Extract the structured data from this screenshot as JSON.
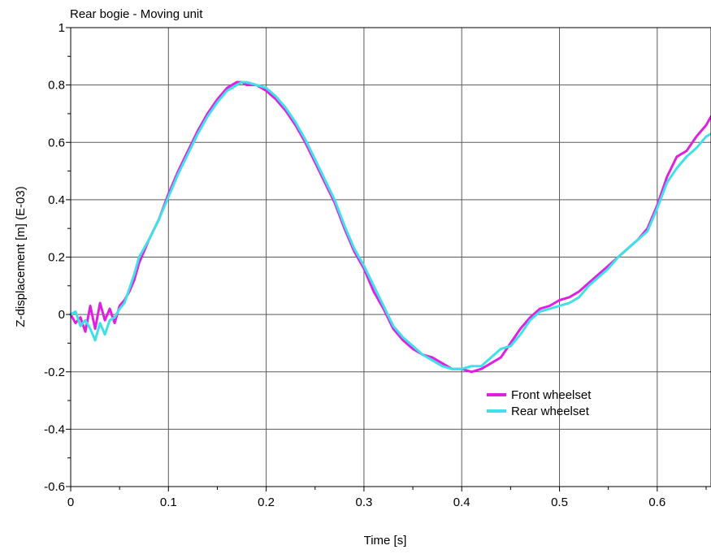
{
  "chart_data": {
    "type": "line",
    "title": "Rear bogie - Moving unit",
    "xlabel": "Time [s]",
    "ylabel": "Z-displacement [m] (E-03)",
    "xlim": [
      0,
      0.655
    ],
    "ylim": [
      -0.6,
      1.0
    ],
    "x_ticks": [
      0,
      0.1,
      0.2,
      0.3,
      0.4,
      0.5,
      0.6
    ],
    "x_tick_labels": [
      "0",
      "0.1",
      "0.2",
      "0.3",
      "0.4",
      "0.5",
      "0.6"
    ],
    "y_ticks": [
      -0.6,
      -0.4,
      -0.2,
      0,
      0.2,
      0.4,
      0.6,
      0.8,
      1.0
    ],
    "y_tick_labels": [
      "-0.6",
      "-0.4",
      "-0.2",
      "0",
      "0.2",
      "0.4",
      "0.6",
      "0.8",
      "1"
    ],
    "grid": true,
    "legend_position": "lower-right",
    "series": [
      {
        "name": "Front wheelset",
        "color": "#e020e0",
        "x": [
          0,
          0.005,
          0.01,
          0.015,
          0.02,
          0.025,
          0.03,
          0.035,
          0.04,
          0.045,
          0.05,
          0.055,
          0.06,
          0.065,
          0.07,
          0.08,
          0.09,
          0.1,
          0.11,
          0.12,
          0.13,
          0.14,
          0.15,
          0.16,
          0.17,
          0.175,
          0.18,
          0.19,
          0.2,
          0.21,
          0.22,
          0.23,
          0.24,
          0.25,
          0.26,
          0.27,
          0.28,
          0.29,
          0.3,
          0.31,
          0.32,
          0.33,
          0.34,
          0.35,
          0.36,
          0.37,
          0.38,
          0.39,
          0.4,
          0.41,
          0.42,
          0.43,
          0.44,
          0.45,
          0.46,
          0.47,
          0.48,
          0.49,
          0.5,
          0.51,
          0.52,
          0.53,
          0.54,
          0.55,
          0.56,
          0.57,
          0.58,
          0.59,
          0.6,
          0.61,
          0.62,
          0.63,
          0.64,
          0.65,
          0.655
        ],
        "y": [
          0.0,
          -0.03,
          -0.01,
          -0.06,
          0.03,
          -0.05,
          0.04,
          -0.02,
          0.02,
          -0.03,
          0.03,
          0.05,
          0.08,
          0.12,
          0.18,
          0.26,
          0.33,
          0.42,
          0.5,
          0.57,
          0.64,
          0.7,
          0.75,
          0.79,
          0.81,
          0.81,
          0.8,
          0.8,
          0.78,
          0.75,
          0.71,
          0.66,
          0.6,
          0.53,
          0.46,
          0.39,
          0.3,
          0.22,
          0.16,
          0.08,
          0.02,
          -0.05,
          -0.09,
          -0.12,
          -0.14,
          -0.15,
          -0.17,
          -0.19,
          -0.19,
          -0.2,
          -0.19,
          -0.17,
          -0.15,
          -0.1,
          -0.05,
          -0.01,
          0.02,
          0.03,
          0.05,
          0.06,
          0.08,
          0.11,
          0.14,
          0.17,
          0.2,
          0.23,
          0.26,
          0.3,
          0.38,
          0.48,
          0.55,
          0.57,
          0.62,
          0.66,
          0.69
        ]
      },
      {
        "name": "Rear wheelset",
        "color": "#40e0e8",
        "x": [
          0,
          0.005,
          0.01,
          0.015,
          0.02,
          0.025,
          0.03,
          0.035,
          0.04,
          0.045,
          0.05,
          0.055,
          0.06,
          0.065,
          0.07,
          0.08,
          0.09,
          0.1,
          0.11,
          0.12,
          0.13,
          0.14,
          0.15,
          0.16,
          0.17,
          0.175,
          0.18,
          0.19,
          0.2,
          0.21,
          0.22,
          0.23,
          0.24,
          0.25,
          0.26,
          0.27,
          0.28,
          0.29,
          0.3,
          0.31,
          0.32,
          0.33,
          0.34,
          0.35,
          0.36,
          0.37,
          0.38,
          0.39,
          0.4,
          0.41,
          0.42,
          0.43,
          0.44,
          0.45,
          0.46,
          0.47,
          0.48,
          0.49,
          0.5,
          0.51,
          0.52,
          0.53,
          0.54,
          0.55,
          0.56,
          0.57,
          0.58,
          0.59,
          0.6,
          0.61,
          0.62,
          0.63,
          0.64,
          0.65,
          0.655
        ],
        "y": [
          0.0,
          0.01,
          -0.04,
          -0.02,
          -0.05,
          -0.09,
          -0.03,
          -0.07,
          -0.02,
          -0.01,
          0.02,
          0.04,
          0.09,
          0.14,
          0.2,
          0.26,
          0.33,
          0.41,
          0.49,
          0.56,
          0.63,
          0.69,
          0.74,
          0.78,
          0.8,
          0.81,
          0.81,
          0.8,
          0.79,
          0.76,
          0.72,
          0.67,
          0.61,
          0.54,
          0.47,
          0.4,
          0.31,
          0.23,
          0.17,
          0.1,
          0.03,
          -0.04,
          -0.08,
          -0.11,
          -0.14,
          -0.16,
          -0.18,
          -0.19,
          -0.19,
          -0.18,
          -0.18,
          -0.15,
          -0.12,
          -0.11,
          -0.07,
          -0.02,
          0.01,
          0.02,
          0.03,
          0.04,
          0.06,
          0.1,
          0.13,
          0.16,
          0.2,
          0.23,
          0.26,
          0.29,
          0.37,
          0.46,
          0.51,
          0.55,
          0.58,
          0.62,
          0.63
        ]
      }
    ]
  }
}
